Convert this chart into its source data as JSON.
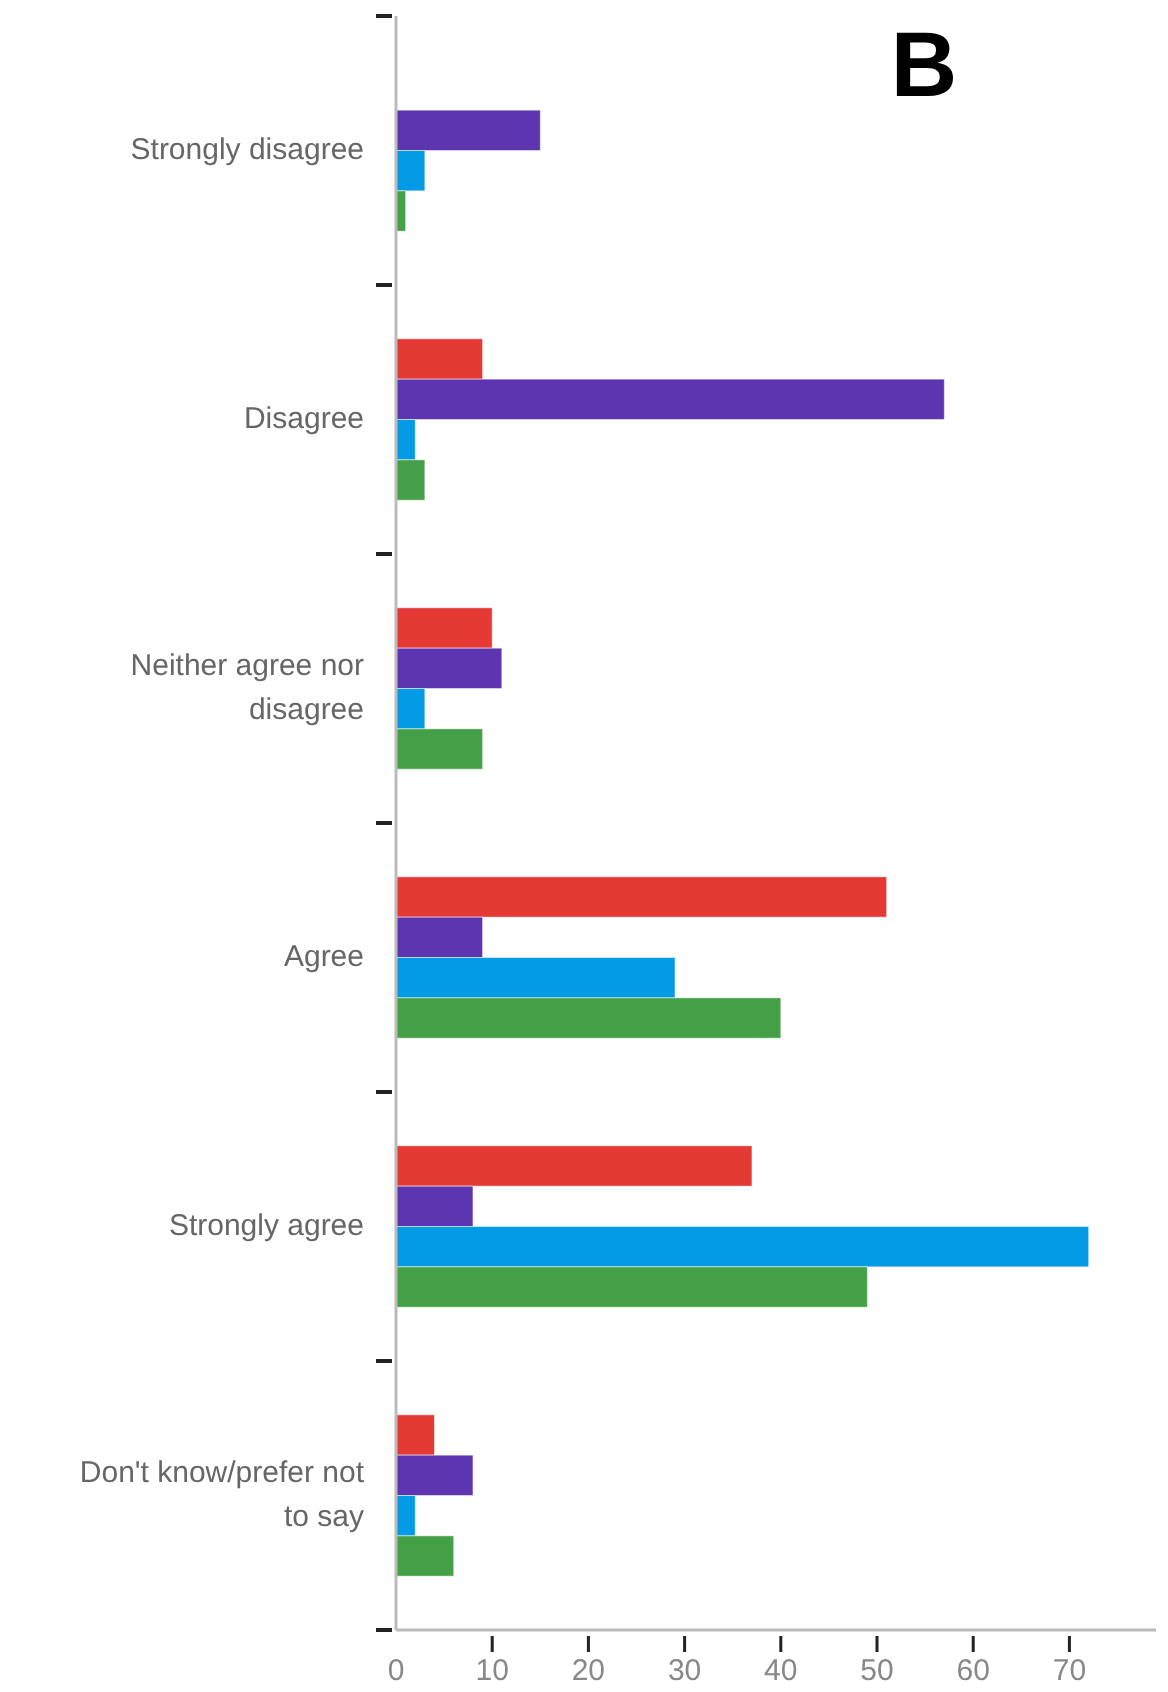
{
  "chart_data": {
    "type": "bar",
    "orientation": "horizontal",
    "title": "B",
    "categories": [
      "Strongly disagree",
      "Disagree",
      "Neither agree nor disagree",
      "Agree",
      "Strongly agree",
      "Don't know/prefer not to say"
    ],
    "series": [
      {
        "color": "#e53935",
        "values": [
          null,
          9,
          10,
          51,
          37,
          4
        ]
      },
      {
        "color": "#5e35b1",
        "values": [
          15,
          57,
          11,
          9,
          8,
          8
        ]
      },
      {
        "color": "#039be5",
        "values": [
          3,
          2,
          3,
          29,
          72,
          2
        ]
      },
      {
        "color": "#43a047",
        "values": [
          1,
          3,
          9,
          40,
          49,
          6
        ]
      }
    ],
    "xlim": [
      0,
      79
    ],
    "xticks": [
      0,
      10,
      20,
      30,
      40,
      50,
      60,
      70
    ],
    "grid": false
  }
}
